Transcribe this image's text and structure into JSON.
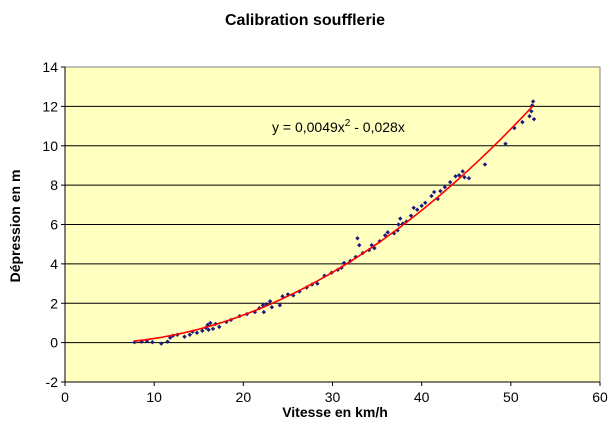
{
  "chart_data": {
    "type": "scatter",
    "title": "Calibration soufflerie",
    "xlabel": "Vitesse en km/h",
    "ylabel": "Dépression en m",
    "xlim": [
      0,
      60
    ],
    "ylim": [
      -2,
      14
    ],
    "x_ticks": [
      0,
      10,
      20,
      30,
      40,
      50,
      60
    ],
    "y_ticks": [
      -2,
      0,
      2,
      4,
      6,
      8,
      10,
      12,
      14
    ],
    "grid": {
      "horizontal": true,
      "vertical": false
    },
    "legend": "none",
    "colors": {
      "plot_background": "#FFFFC0",
      "points": "#1a1a80",
      "trendline": "#ff0000",
      "gridlines": "#000000",
      "page_background": "#ffffff"
    },
    "trendline": {
      "label_base": "y = 0,0049x",
      "label_exponent": "2",
      "label_rest": " - 0,028x",
      "coefficients": {
        "a2": 0.0049,
        "a1": -0.028,
        "a0": 0
      },
      "x_range": [
        7.8,
        52.5
      ]
    },
    "series": [
      {
        "values": [
          [
            7.8,
            0.02
          ],
          [
            8.6,
            0.05
          ],
          [
            9.2,
            0.08
          ],
          [
            9.8,
            0.02
          ],
          [
            10.8,
            -0.05
          ],
          [
            11.5,
            0.05
          ],
          [
            11.8,
            0.25
          ],
          [
            12.1,
            0.35
          ],
          [
            12.6,
            0.4
          ],
          [
            13.4,
            0.3
          ],
          [
            14.0,
            0.4
          ],
          [
            14.3,
            0.55
          ],
          [
            14.8,
            0.5
          ],
          [
            15.4,
            0.6
          ],
          [
            15.8,
            0.75
          ],
          [
            16.0,
            0.9
          ],
          [
            16.1,
            0.65
          ],
          [
            16.3,
            1.0
          ],
          [
            16.6,
            0.7
          ],
          [
            16.9,
            0.95
          ],
          [
            17.3,
            0.8
          ],
          [
            18.1,
            1.05
          ],
          [
            18.6,
            1.15
          ],
          [
            19.6,
            1.35
          ],
          [
            20.4,
            1.45
          ],
          [
            21.3,
            1.55
          ],
          [
            21.8,
            1.75
          ],
          [
            22.2,
            1.9
          ],
          [
            22.3,
            1.55
          ],
          [
            22.6,
            1.95
          ],
          [
            23.0,
            2.1
          ],
          [
            23.2,
            1.8
          ],
          [
            24.1,
            1.9
          ],
          [
            24.4,
            2.35
          ],
          [
            25.0,
            2.45
          ],
          [
            25.6,
            2.4
          ],
          [
            26.3,
            2.6
          ],
          [
            27.1,
            2.8
          ],
          [
            27.7,
            2.95
          ],
          [
            28.3,
            3.0
          ],
          [
            29.1,
            3.4
          ],
          [
            29.9,
            3.55
          ],
          [
            30.6,
            3.7
          ],
          [
            31.0,
            3.8
          ],
          [
            31.3,
            4.05
          ],
          [
            32.0,
            4.15
          ],
          [
            32.6,
            4.35
          ],
          [
            32.8,
            5.3
          ],
          [
            33.0,
            4.95
          ],
          [
            33.4,
            4.55
          ],
          [
            34.1,
            4.7
          ],
          [
            34.4,
            4.95
          ],
          [
            34.7,
            4.8
          ],
          [
            35.3,
            5.15
          ],
          [
            35.9,
            5.45
          ],
          [
            36.2,
            5.6
          ],
          [
            36.9,
            5.55
          ],
          [
            37.3,
            5.7
          ],
          [
            37.4,
            6.0
          ],
          [
            37.6,
            6.3
          ],
          [
            37.9,
            6.05
          ],
          [
            38.3,
            6.15
          ],
          [
            38.8,
            6.45
          ],
          [
            39.1,
            6.85
          ],
          [
            39.5,
            6.75
          ],
          [
            40.0,
            6.95
          ],
          [
            40.4,
            7.1
          ],
          [
            41.1,
            7.45
          ],
          [
            41.4,
            7.65
          ],
          [
            41.8,
            7.3
          ],
          [
            42.1,
            7.7
          ],
          [
            42.6,
            7.9
          ],
          [
            43.2,
            8.15
          ],
          [
            43.8,
            8.45
          ],
          [
            44.2,
            8.5
          ],
          [
            44.6,
            8.7
          ],
          [
            44.8,
            8.4
          ],
          [
            45.3,
            8.35
          ],
          [
            47.1,
            9.05
          ],
          [
            49.4,
            10.1
          ],
          [
            50.4,
            10.9
          ],
          [
            51.3,
            11.2
          ],
          [
            52.1,
            11.5
          ],
          [
            52.3,
            11.75
          ],
          [
            52.4,
            12.05
          ],
          [
            52.5,
            12.25
          ],
          [
            52.6,
            11.35
          ]
        ]
      }
    ]
  }
}
